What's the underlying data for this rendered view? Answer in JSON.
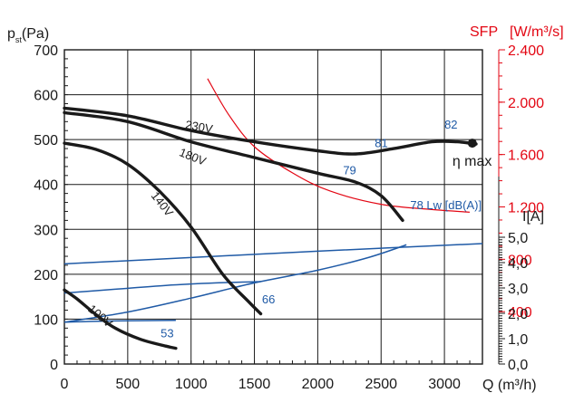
{
  "chart_data": {
    "type": "line",
    "pressure_axis": {
      "label_main": "p",
      "label_sub": "st",
      "label_unit": "(Pa)",
      "range": [
        0,
        700
      ],
      "ticks": [
        "0",
        "100",
        "200",
        "300",
        "400",
        "500",
        "600",
        "700"
      ]
    },
    "flow_axis": {
      "label": "Q (m³/h)",
      "range": [
        0,
        3300
      ],
      "ticks": [
        "0",
        "500",
        "1000",
        "1500",
        "2000",
        "2500",
        "3000"
      ]
    },
    "sfp_axis": {
      "label": "SFP",
      "unit": "[W/m³/s]",
      "range": [
        0,
        2400
      ],
      "tick_values": [
        400,
        800,
        1200,
        1600,
        2000,
        2400
      ],
      "ticks": [
        "400",
        "800",
        "1.200",
        "1.600",
        "2.000",
        "2.400"
      ]
    },
    "current_axis": {
      "label": "I[A]",
      "range": [
        0,
        5
      ],
      "tick_values": [
        0,
        1,
        2,
        3,
        4,
        5
      ],
      "ticks": [
        "0,0",
        "1,0",
        "2,0",
        "3,0",
        "4,0",
        "5,0"
      ]
    },
    "pressure_curves": [
      {
        "name": "230V",
        "x": [
          0,
          500,
          1000,
          1500,
          2000,
          2300,
          2600,
          2900,
          3100,
          3250
        ],
        "y": [
          570,
          553,
          520,
          495,
          475,
          468,
          480,
          495,
          495,
          490
        ]
      },
      {
        "name": "180V",
        "x": [
          0,
          500,
          1000,
          1500,
          2000,
          2300,
          2500,
          2670
        ],
        "y": [
          560,
          540,
          495,
          460,
          425,
          405,
          375,
          320
        ]
      },
      {
        "name": "140V",
        "x": [
          0,
          250,
          500,
          750,
          1000,
          1250,
          1450,
          1550
        ],
        "y": [
          492,
          478,
          445,
          385,
          305,
          200,
          140,
          112
        ]
      },
      {
        "name": "100V",
        "x": [
          0,
          100,
          250,
          400,
          600,
          800,
          880
        ],
        "y": [
          165,
          145,
          110,
          80,
          55,
          40,
          35
        ]
      }
    ],
    "sfp_curve": {
      "x": [
        1130,
        1300,
        1500,
        1800,
        2100,
        2500,
        2900,
        3200
      ],
      "y": [
        2180,
        1900,
        1660,
        1460,
        1320,
        1220,
        1180,
        1160
      ]
    },
    "current_curves": [
      {
        "x": [
          0,
          1000,
          2000,
          3300
        ],
        "y": [
          3.95,
          4.2,
          4.45,
          4.75
        ]
      },
      {
        "x": [
          0,
          500,
          1000,
          1500,
          2000,
          2400,
          2700
        ],
        "y": [
          1.65,
          2.05,
          2.6,
          3.2,
          3.7,
          4.2,
          4.7
        ]
      },
      {
        "x": [
          0,
          400,
          800,
          1200,
          1550
        ],
        "y": [
          2.8,
          2.95,
          3.1,
          3.2,
          3.25
        ]
      },
      {
        "x": [
          0,
          400,
          880
        ],
        "y": [
          1.65,
          1.7,
          1.72
        ]
      }
    ],
    "sound_levels": [
      {
        "text": "82",
        "x": 3000,
        "y": 525
      },
      {
        "text": "81",
        "x": 2450,
        "y": 483
      },
      {
        "text": "79",
        "x": 2200,
        "y": 423
      },
      {
        "text": "78 Lw [dB(A)]",
        "x": 2730,
        "y": 345
      },
      {
        "text": "66",
        "x": 1560,
        "y": 135
      },
      {
        "text": "53",
        "x": 760,
        "y": 60
      }
    ],
    "max_efficiency": {
      "label": "η max",
      "x": 3220,
      "y": 492
    },
    "curve_labels": [
      {
        "text": "230V",
        "x": 950,
        "y": 525,
        "angle": 10
      },
      {
        "text": "180V",
        "x": 900,
        "y": 465,
        "angle": 22
      },
      {
        "text": "140V",
        "x": 680,
        "y": 375,
        "angle": 52
      },
      {
        "text": "100V",
        "x": 180,
        "y": 120,
        "angle": 40
      }
    ],
    "grid": true
  }
}
